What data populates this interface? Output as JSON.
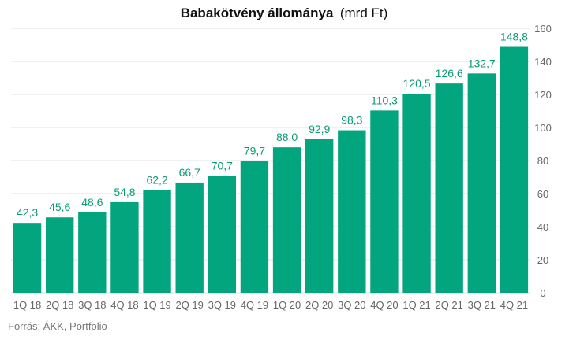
{
  "chart_data": {
    "type": "bar",
    "title": "Babakötvény állománya",
    "title_unit": "(mrd Ft)",
    "source": "Forrás: ÁKK, Portfolio",
    "categories": [
      "1Q 18",
      "2Q 18",
      "3Q 18",
      "4Q 18",
      "1Q 19",
      "2Q 19",
      "3Q 19",
      "4Q 19",
      "1Q 20",
      "2Q 20",
      "3Q 20",
      "4Q 20",
      "1Q 21",
      "2Q 21",
      "3Q 21",
      "4Q 21"
    ],
    "values": [
      42.3,
      45.6,
      48.6,
      54.8,
      62.2,
      66.7,
      70.7,
      79.7,
      88.0,
      92.9,
      98.3,
      110.3,
      120.5,
      126.6,
      132.7,
      148.8
    ],
    "value_labels": [
      "42,3",
      "45,6",
      "48,6",
      "54,8",
      "62,2",
      "66,7",
      "70,7",
      "79,7",
      "88,0",
      "92,9",
      "98,3",
      "110,3",
      "120,5",
      "126,6",
      "132,7",
      "148,8"
    ],
    "ylim": [
      0,
      160
    ],
    "yticks": [
      0,
      20,
      40,
      60,
      80,
      100,
      120,
      140,
      160
    ],
    "y_axis_side": "right",
    "grid": true,
    "bar_color": "#02a57d",
    "label_color": "#0a9b76"
  }
}
